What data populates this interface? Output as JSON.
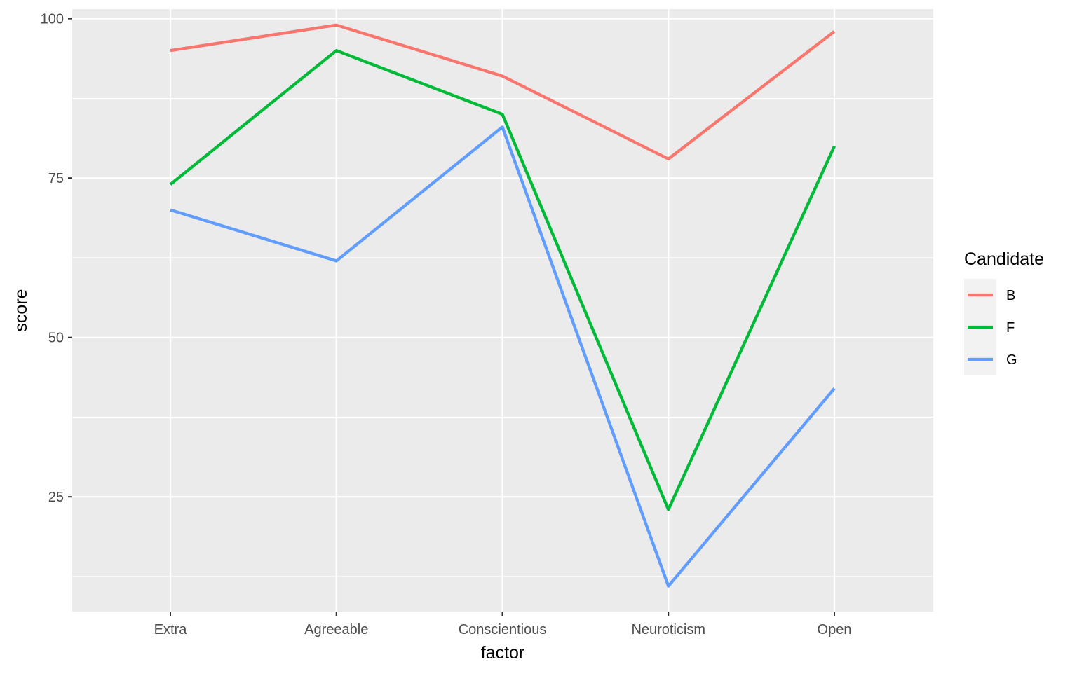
{
  "chart_data": {
    "type": "line",
    "title": "",
    "xlabel": "factor",
    "ylabel": "score",
    "categories": [
      "Extra",
      "Agreeable",
      "Conscientious",
      "Neuroticism",
      "Open"
    ],
    "yticks": [
      25,
      50,
      75,
      100
    ],
    "ylim": [
      7,
      101.5
    ],
    "grid": true,
    "legend": {
      "title": "Candidate",
      "position": "right"
    },
    "series": [
      {
        "name": "B",
        "color": "#F8766D",
        "values": [
          95,
          99,
          91,
          78,
          98
        ]
      },
      {
        "name": "F",
        "color": "#00BA38",
        "values": [
          74,
          95,
          85,
          23,
          80
        ]
      },
      {
        "name": "G",
        "color": "#619CFF",
        "values": [
          70,
          62,
          83,
          11,
          42
        ]
      }
    ]
  }
}
